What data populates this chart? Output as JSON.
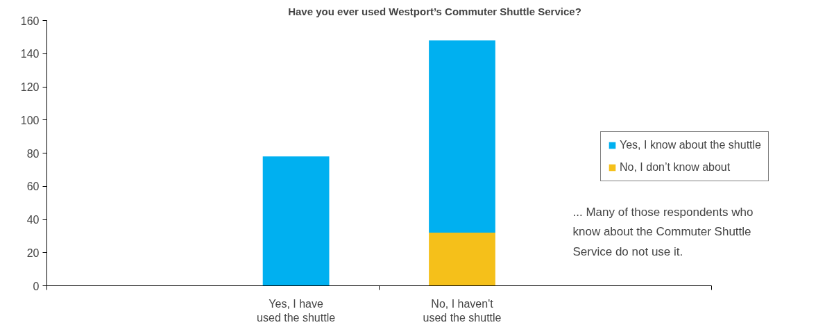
{
  "chart_data": {
    "type": "bar",
    "stacked": true,
    "title": "Have you ever used Westport’s Commuter Shuttle Service?",
    "categories": [
      null,
      "Yes, I have\nused the shuttle",
      "No, I haven't\nused the shuttle",
      null
    ],
    "series": [
      {
        "name": "No, I don’t know about",
        "color": "#f5c01a",
        "values": [
          null,
          0,
          32,
          null
        ]
      },
      {
        "name": "Yes, I know about the shuttle",
        "color": "#00b0f0",
        "values": [
          null,
          78,
          116,
          null
        ]
      }
    ],
    "ylim": [
      0,
      160
    ],
    "yticks": [
      0,
      20,
      40,
      60,
      80,
      100,
      120,
      140,
      160
    ],
    "grid": false,
    "legend": "right",
    "annotations": [
      "... Many of those respondents who know about the Commuter Shuttle Service do not use it."
    ]
  }
}
